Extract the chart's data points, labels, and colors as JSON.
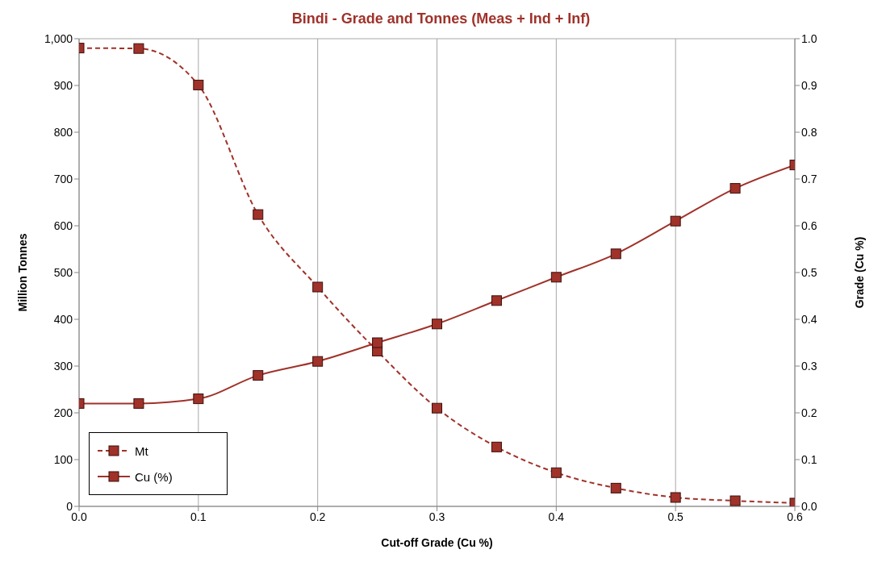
{
  "chart_data": {
    "type": "line",
    "title": "Bindi - Grade and Tonnes (Meas + Ind + Inf)",
    "xlabel": "Cut-off Grade (Cu %)",
    "ylabel": "Million Tonnes",
    "y2label": "Grade (Cu %)",
    "x": [
      0,
      0.05,
      0.1,
      0.15,
      0.2,
      0.25,
      0.3,
      0.35,
      0.4,
      0.45,
      0.5,
      0.55,
      0.6
    ],
    "series": [
      {
        "name": "Mt",
        "color": "#a0322a",
        "line_style": "dashed",
        "values": [
          980,
          979,
          901,
          624,
          469,
          332,
          210,
          127,
          72,
          39,
          19,
          12,
          7
        ]
      },
      {
        "name": "Cu (%)",
        "color": "#a0322a",
        "line_style": "solid",
        "axis": "y2",
        "values": [
          0.22,
          0.22,
          0.23,
          0.28,
          0.31,
          0.35,
          0.39,
          0.44,
          0.49,
          0.54,
          0.61,
          0.68,
          0.73
        ]
      }
    ],
    "xlim": [
      0,
      0.6
    ],
    "xticks": [
      {
        "value": 0,
        "label": "0.0"
      },
      0.1,
      0.2,
      0.3,
      0.4,
      0.5,
      0.6
    ],
    "ylim": [
      0,
      1000
    ],
    "yticks": [
      0,
      100,
      200,
      300,
      400,
      500,
      600,
      700,
      800,
      900,
      {
        "value": 1000,
        "label": "1,000"
      }
    ],
    "y2lim": [
      0,
      1
    ],
    "y2ticks": [
      {
        "value": 0,
        "label": "0.0"
      },
      0.1,
      0.2,
      0.3,
      0.4,
      0.5,
      0.6,
      0.7,
      0.8,
      0.9,
      {
        "value": 1,
        "label": "1.0"
      }
    ],
    "grid": true,
    "legend": "bottom left",
    "marker": "square"
  }
}
